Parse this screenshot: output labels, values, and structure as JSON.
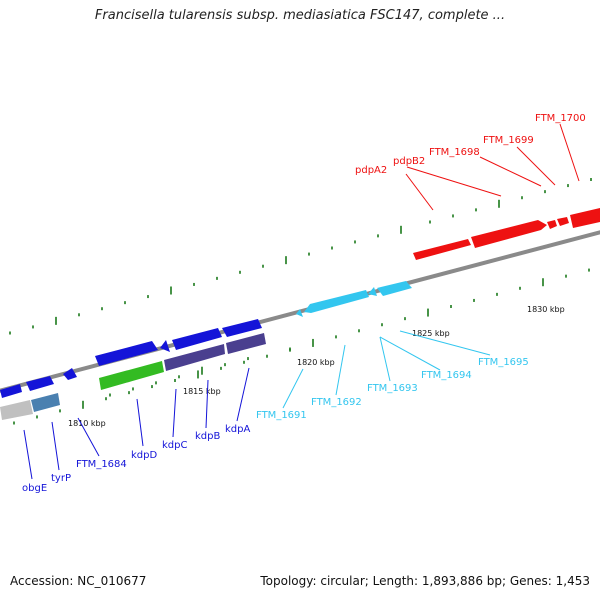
{
  "title": "Francisella tularensis subsp. mediasiatica FSC147, complete ...",
  "footer": {
    "accession": "Accession: NC_010677",
    "summary": "Topology: circular; Length: 1,893,886 bp; Genes: 1,453"
  },
  "scale_labels": [
    "1810 kbp",
    "1815 kbp",
    "1820 kbp",
    "1825 kbp",
    "1830 kbp"
  ],
  "gene_labels": {
    "red": [
      "pdpA2",
      "pdpB2",
      "FTM_1698",
      "FTM_1699",
      "FTM_1700"
    ],
    "cyan": [
      "FTM_1691",
      "FTM_1692",
      "FTM_1693",
      "FTM_1694",
      "FTM_1695"
    ],
    "blue": [
      "obgE",
      "tyrP",
      "FTM_1684",
      "kdpD",
      "kdpC",
      "kdpB",
      "kdpA"
    ]
  },
  "colors": {
    "red": "#ee1111",
    "cyan": "#33c6ef",
    "blue": "#1414d8",
    "green": "#33bb22",
    "purple": "#4a3f8f",
    "steel": "#4a80b0",
    "grey": "#c0c0c0",
    "tick": "#1a7a1a",
    "backbone": "#888888"
  }
}
